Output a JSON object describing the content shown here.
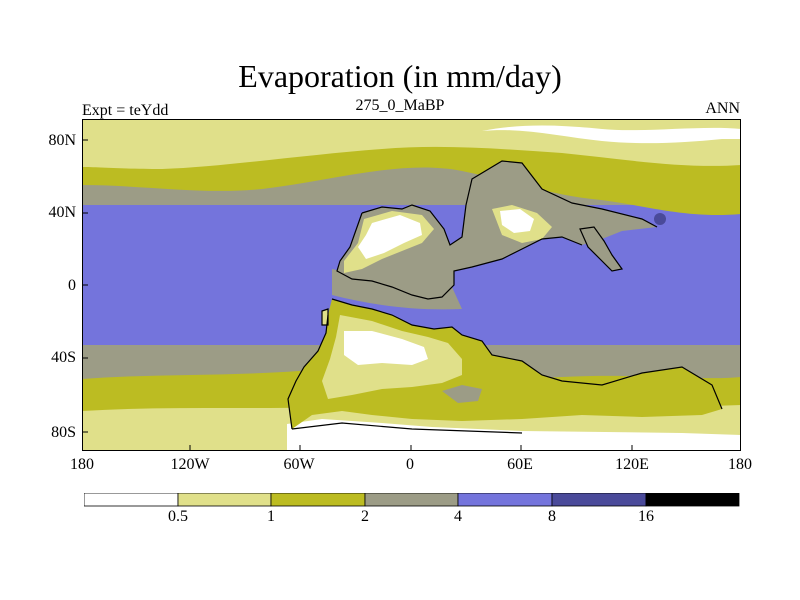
{
  "title": "Evaporation (in mm/day)",
  "subtitle": {
    "left": "Expt = teYdd",
    "center": "275_0_MaBP",
    "right": "ANN"
  },
  "lat_labels": [
    "80N",
    "40N",
    "0",
    "40S",
    "80S"
  ],
  "lon_labels": [
    "180",
    "120W",
    "60W",
    "0",
    "60E",
    "120E",
    "180"
  ],
  "colorbar": {
    "labels": [
      "0.5",
      "1",
      "2",
      "4",
      "8",
      "16"
    ],
    "colors": [
      "#ffffff",
      "#e0e08a",
      "#bcbc22",
      "#9c9c86",
      "#7474dc",
      "#4a4a9a",
      "#000000"
    ]
  },
  "colors": {
    "white": "#ffffff",
    "light_yellow": "#e0e08a",
    "olive": "#bcbc22",
    "gray": "#9c9c86",
    "blue": "#7474dc",
    "navy": "#4a4a9a",
    "coast": "#000000"
  }
}
